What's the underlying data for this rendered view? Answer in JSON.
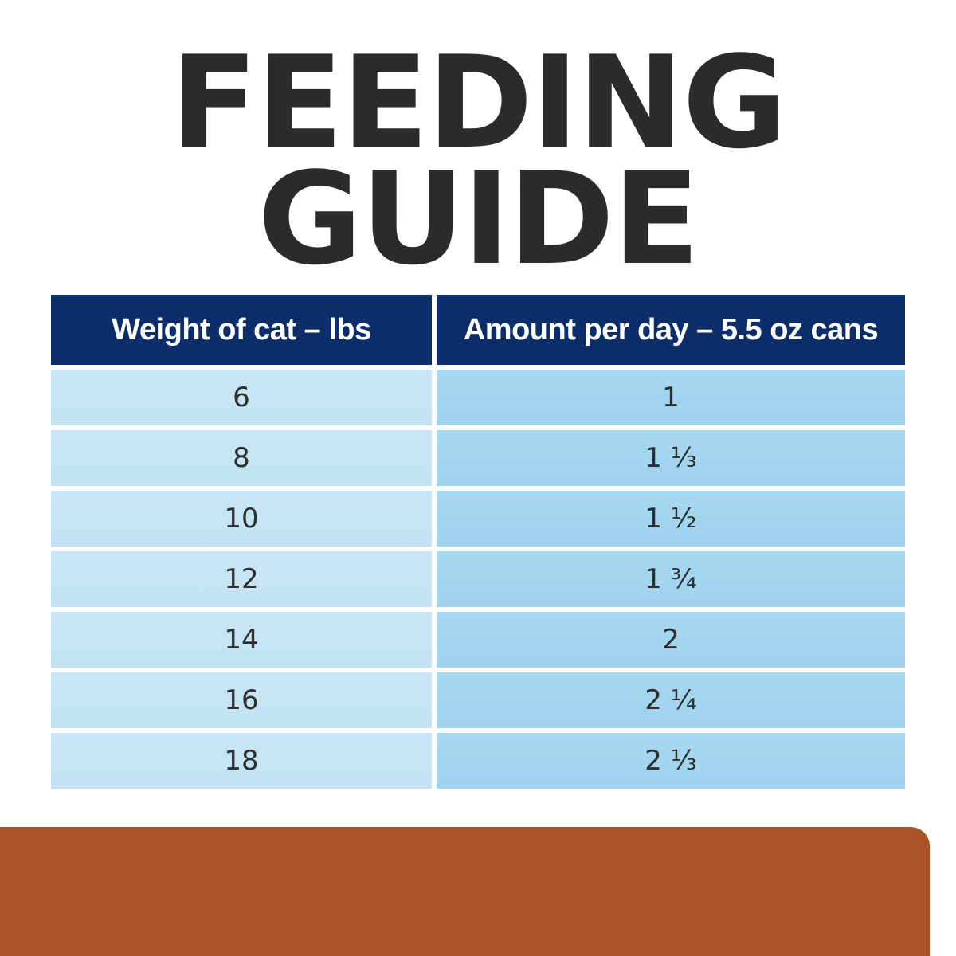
{
  "title": {
    "line1": "FEEDING",
    "line2": "GUIDE"
  },
  "table": {
    "headers": [
      "Weight of cat – lbs",
      "Amount per day – 5.5 oz cans"
    ],
    "rows": [
      {
        "weight": "6",
        "amount": "1"
      },
      {
        "weight": "8",
        "amount": "1 ⅓"
      },
      {
        "weight": "10",
        "amount": "1 ½"
      },
      {
        "weight": "12",
        "amount": "1 ¾"
      },
      {
        "weight": "14",
        "amount": "2"
      },
      {
        "weight": "16",
        "amount": "2 ¼"
      },
      {
        "weight": "18",
        "amount": "2 ⅓"
      }
    ]
  },
  "colors": {
    "title": "#2b2b2b",
    "header_bg": "#0b2e6b",
    "weight_cell_bg": "#c5e4f4",
    "amount_cell_bg": "#a3d6ef",
    "bottom_panel": "#a95327"
  }
}
